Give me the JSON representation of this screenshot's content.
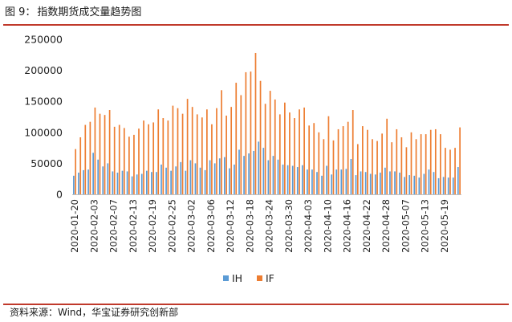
{
  "header": {
    "figure_label": "图 9：",
    "title": "指数期货成交量趋势图"
  },
  "footer": {
    "source": "资料来源：Wind，华宝证券研究创新部"
  },
  "colors": {
    "accent_rule": "#c0392b",
    "series_ih": "#5b9bd5",
    "series_if": "#ed7d31"
  },
  "chart_data": {
    "type": "bar",
    "title": "指数期货成交量趋势图",
    "xlabel": "",
    "ylabel": "",
    "ylim": [
      0,
      250000
    ],
    "yticks": [
      0,
      50000,
      100000,
      150000,
      200000,
      250000
    ],
    "grid": false,
    "legend_position": "bottom",
    "x_tick_labels": [
      "2020-01-20",
      "2020-02-03",
      "2020-02-07",
      "2020-02-13",
      "2020-02-19",
      "2020-02-25",
      "2020-03-02",
      "2020-03-06",
      "2020-03-12",
      "2020-03-18",
      "2020-03-24",
      "2020-03-30",
      "2020-04-03",
      "2020-04-10",
      "2020-04-16",
      "2020-04-22",
      "2020-04-28",
      "2020-05-07",
      "2020-05-13",
      "2020-05-19"
    ],
    "x_tick_every": 4,
    "categories": [
      "2020-01-20",
      "2020-01-21",
      "2020-01-22",
      "2020-01-23",
      "2020-02-03",
      "2020-02-04",
      "2020-02-05",
      "2020-02-06",
      "2020-02-07",
      "2020-02-10",
      "2020-02-11",
      "2020-02-12",
      "2020-02-13",
      "2020-02-14",
      "2020-02-17",
      "2020-02-18",
      "2020-02-19",
      "2020-02-20",
      "2020-02-21",
      "2020-02-24",
      "2020-02-25",
      "2020-02-26",
      "2020-02-27",
      "2020-02-28",
      "2020-03-02",
      "2020-03-03",
      "2020-03-04",
      "2020-03-05",
      "2020-03-06",
      "2020-03-09",
      "2020-03-10",
      "2020-03-11",
      "2020-03-12",
      "2020-03-13",
      "2020-03-16",
      "2020-03-17",
      "2020-03-18",
      "2020-03-19",
      "2020-03-20",
      "2020-03-23",
      "2020-03-24",
      "2020-03-25",
      "2020-03-26",
      "2020-03-27",
      "2020-03-30",
      "2020-03-31",
      "2020-04-01",
      "2020-04-02",
      "2020-04-03",
      "2020-04-07",
      "2020-04-08",
      "2020-04-09",
      "2020-04-10",
      "2020-04-13",
      "2020-04-14",
      "2020-04-15",
      "2020-04-16",
      "2020-04-17",
      "2020-04-20",
      "2020-04-21",
      "2020-04-22",
      "2020-04-23",
      "2020-04-24",
      "2020-04-27",
      "2020-04-28",
      "2020-04-29",
      "2020-04-30",
      "2020-05-06",
      "2020-05-07",
      "2020-05-08",
      "2020-05-11",
      "2020-05-12",
      "2020-05-13",
      "2020-05-14",
      "2020-05-15",
      "2020-05-18",
      "2020-05-19",
      "2020-05-20",
      "2020-05-21",
      "2020-05-22"
    ],
    "series": [
      {
        "name": "IH",
        "values": [
          30000,
          35000,
          39000,
          40000,
          67000,
          56000,
          45000,
          50000,
          37000,
          35000,
          38000,
          37000,
          29000,
          32000,
          33000,
          38000,
          36000,
          36000,
          48000,
          43000,
          38000,
          45000,
          52000,
          38000,
          55000,
          50000,
          43000,
          39000,
          55000,
          50000,
          58000,
          60000,
          42000,
          48000,
          72000,
          62000,
          66000,
          70000,
          85000,
          75000,
          55000,
          62000,
          56000,
          48000,
          47000,
          46000,
          44000,
          47000,
          40000,
          40000,
          36000,
          30000,
          46000,
          32000,
          40000,
          40000,
          41000,
          57000,
          31000,
          37000,
          36000,
          33000,
          32000,
          35000,
          43000,
          37000,
          37000,
          35000,
          28000,
          31000,
          30000,
          27000,
          33000,
          40000,
          36000,
          26000,
          28000,
          27000,
          27000,
          44000
        ]
      },
      {
        "name": "IF",
        "values": [
          73000,
          92000,
          112000,
          117000,
          140000,
          130000,
          128000,
          136000,
          109000,
          112000,
          107000,
          93000,
          96000,
          106000,
          119000,
          113000,
          116000,
          137000,
          123000,
          119000,
          143000,
          139000,
          130000,
          154000,
          141000,
          129000,
          124000,
          137000,
          113000,
          139000,
          168000,
          127000,
          141000,
          180000,
          160000,
          197000,
          198000,
          228000,
          183000,
          146000,
          167000,
          153000,
          129000,
          148000,
          132000,
          123000,
          137000,
          140000,
          111000,
          115000,
          100000,
          89000,
          126000,
          87000,
          105000,
          110000,
          117000,
          136000,
          81000,
          110000,
          104000,
          89000,
          86000,
          98000,
          122000,
          84000,
          105000,
          92000,
          76000,
          100000,
          89000,
          97000,
          97000,
          104000,
          105000,
          97000,
          75000,
          72000,
          75000,
          108000
        ]
      }
    ]
  }
}
